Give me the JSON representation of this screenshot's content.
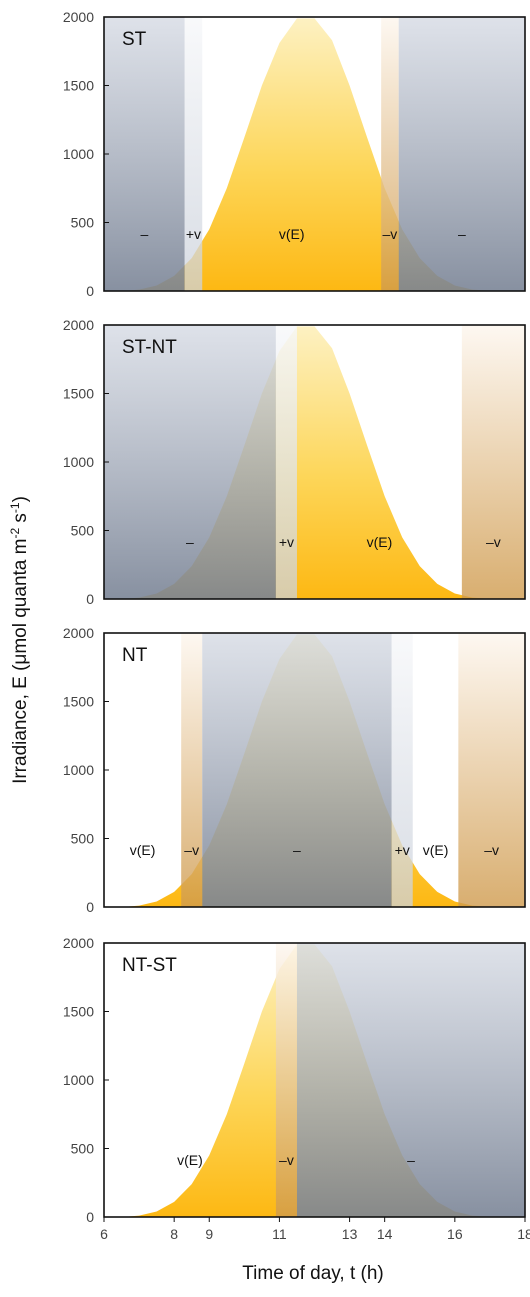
{
  "figure": {
    "ylabel": "Irradiance, E (μmol quanta m-2 s-1)",
    "ylabel_parts": {
      "base": "Irradiance, E (μmol quanta m",
      "sup1": "-2",
      "mid": " s",
      "sup2": "-1",
      "end": ")"
    },
    "xlabel": "Time of day, t (h)",
    "x_ticks": [
      6,
      8,
      9,
      11,
      13,
      14,
      16,
      18
    ],
    "y_ticks": [
      0,
      500,
      1000,
      1500,
      2000
    ]
  },
  "colors": {
    "curve": "#fdb813",
    "curve_light": "#fdf1c2",
    "gray_band": "#a4adbd",
    "light_gray_band": "#e4e8ef",
    "tan_band": "#e3b777"
  },
  "chart_data": [
    {
      "type": "area",
      "title": "ST",
      "xlim": [
        6,
        18
      ],
      "ylim": [
        0,
        2000
      ],
      "x_ticks": [],
      "y_ticks": [
        0,
        500,
        1000,
        1500,
        2000
      ],
      "series": [
        {
          "x": [
            6.5,
            7,
            7.5,
            8,
            8.5,
            9,
            9.5,
            10,
            10.5,
            11,
            11.5,
            12,
            12.5,
            13,
            13.5,
            14,
            14.5,
            15,
            15.5,
            16,
            16.5,
            17,
            17.5
          ],
          "values": [
            0,
            10,
            40,
            110,
            240,
            450,
            750,
            1120,
            1500,
            1810,
            1990,
            1990,
            1830,
            1500,
            1120,
            750,
            450,
            240,
            110,
            40,
            10,
            2,
            0
          ]
        }
      ],
      "bands": [
        {
          "from": 6,
          "to": 8.3,
          "kind": "gray",
          "label": "–"
        },
        {
          "from": 8.3,
          "to": 8.8,
          "kind": "light",
          "label": "+v"
        },
        {
          "from": 8.8,
          "to": 13.9,
          "kind": "none",
          "label": "v(E)"
        },
        {
          "from": 13.9,
          "to": 14.4,
          "kind": "tan",
          "label": "–v"
        },
        {
          "from": 14.4,
          "to": 18,
          "kind": "gray",
          "label": "–"
        }
      ]
    },
    {
      "type": "area",
      "title": "ST-NT",
      "xlim": [
        6,
        18
      ],
      "ylim": [
        0,
        2000
      ],
      "x_ticks": [],
      "y_ticks": [
        0,
        500,
        1000,
        1500,
        2000
      ],
      "series": [
        {
          "x": [
            6.5,
            7,
            7.5,
            8,
            8.5,
            9,
            9.5,
            10,
            10.5,
            11,
            11.5,
            12,
            12.5,
            13,
            13.5,
            14,
            14.5,
            15,
            15.5,
            16,
            16.5,
            17,
            17.5
          ],
          "values": [
            0,
            10,
            40,
            110,
            240,
            450,
            750,
            1120,
            1500,
            1810,
            1990,
            1990,
            1830,
            1500,
            1120,
            750,
            450,
            240,
            110,
            40,
            10,
            2,
            0
          ]
        }
      ],
      "bands": [
        {
          "from": 6,
          "to": 10.9,
          "kind": "gray",
          "label": "–"
        },
        {
          "from": 10.9,
          "to": 11.5,
          "kind": "light",
          "label": "+v"
        },
        {
          "from": 11.5,
          "to": 16.2,
          "kind": "none",
          "label": "v(E)"
        },
        {
          "from": 16.2,
          "to": 18,
          "kind": "tan",
          "label": "–v"
        }
      ]
    },
    {
      "type": "area",
      "title": "NT",
      "xlim": [
        6,
        18
      ],
      "ylim": [
        0,
        2000
      ],
      "x_ticks": [],
      "y_ticks": [
        0,
        500,
        1000,
        1500,
        2000
      ],
      "series": [
        {
          "x": [
            6.5,
            7,
            7.5,
            8,
            8.5,
            9,
            9.5,
            10,
            10.5,
            11,
            11.5,
            12,
            12.5,
            13,
            13.5,
            14,
            14.5,
            15,
            15.5,
            16,
            16.5,
            17,
            17.5
          ],
          "values": [
            0,
            10,
            40,
            110,
            240,
            450,
            750,
            1120,
            1500,
            1810,
            1990,
            1990,
            1830,
            1500,
            1120,
            750,
            450,
            240,
            110,
            40,
            10,
            2,
            0
          ]
        }
      ],
      "bands": [
        {
          "from": 6,
          "to": 8.2,
          "kind": "none",
          "label": "v(E)"
        },
        {
          "from": 8.2,
          "to": 8.8,
          "kind": "tan",
          "label": "–v"
        },
        {
          "from": 8.8,
          "to": 14.2,
          "kind": "gray",
          "label": "–"
        },
        {
          "from": 14.2,
          "to": 14.8,
          "kind": "light",
          "label": "+v"
        },
        {
          "from": 14.8,
          "to": 16.1,
          "kind": "none",
          "label": "v(E)"
        },
        {
          "from": 16.1,
          "to": 18,
          "kind": "tan",
          "label": "–v"
        }
      ]
    },
    {
      "type": "area",
      "title": "NT-ST",
      "xlim": [
        6,
        18
      ],
      "ylim": [
        0,
        2000
      ],
      "x_ticks": [
        6,
        8,
        9,
        11,
        13,
        14,
        16,
        18
      ],
      "y_ticks": [
        0,
        500,
        1000,
        1500,
        2000
      ],
      "series": [
        {
          "x": [
            6.5,
            7,
            7.5,
            8,
            8.5,
            9,
            9.5,
            10,
            10.5,
            11,
            11.5,
            12,
            12.5,
            13,
            13.5,
            14,
            14.5,
            15,
            15.5,
            16,
            16.5,
            17,
            17.5
          ],
          "values": [
            0,
            10,
            40,
            110,
            240,
            450,
            750,
            1120,
            1500,
            1810,
            1990,
            1990,
            1830,
            1500,
            1120,
            750,
            450,
            240,
            110,
            40,
            10,
            2,
            0
          ]
        }
      ],
      "bands": [
        {
          "from": 6,
          "to": 10.9,
          "kind": "none",
          "label": "v(E)"
        },
        {
          "from": 10.9,
          "to": 11.5,
          "kind": "tan",
          "label": "–v"
        },
        {
          "from": 11.5,
          "to": 18,
          "kind": "gray",
          "label": "–"
        }
      ]
    }
  ]
}
